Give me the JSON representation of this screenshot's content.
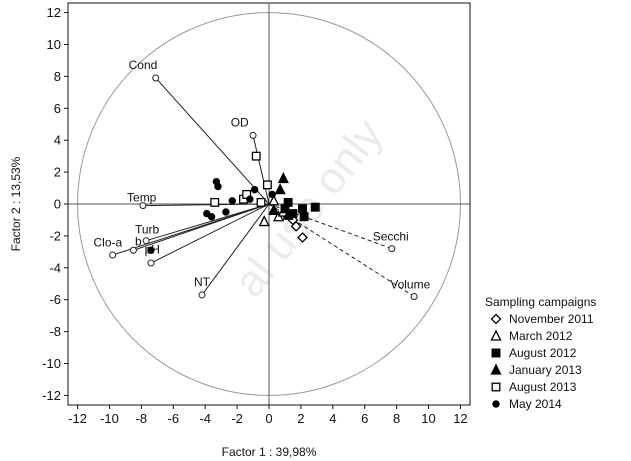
{
  "chart_data": {
    "type": "scatter",
    "subtype": "pca-biplot",
    "xlabel": "Factor 1 : 39,98%",
    "ylabel": "Factor 2 : 13,53%",
    "xlim": [
      -12.6,
      12.6
    ],
    "ylim": [
      -12.6,
      12.6
    ],
    "xticks": [
      -12,
      -10,
      -8,
      -6,
      -4,
      -2,
      0,
      2,
      4,
      6,
      8,
      10,
      12
    ],
    "yticks": [
      -12,
      -10,
      -8,
      -6,
      -4,
      -2,
      0,
      2,
      4,
      6,
      8,
      10,
      12
    ],
    "circle_radius": 12,
    "grid": false,
    "watermark": "al use only",
    "variables": [
      {
        "name": "Cond",
        "x": -7.1,
        "y": 7.9,
        "label_dx": -1.7,
        "label_dy": 0.55,
        "dashed": false
      },
      {
        "name": "OD",
        "x": -1.0,
        "y": 4.3,
        "label_dx": -1.4,
        "label_dy": 0.55,
        "dashed": false
      },
      {
        "name": "Temp",
        "x": -7.9,
        "y": -0.1,
        "label_dx": -1.0,
        "label_dy": 0.25,
        "dashed": false
      },
      {
        "name": "Turb",
        "x": -7.7,
        "y": -2.3,
        "label_dx": -0.7,
        "label_dy": 0.45,
        "dashed": false
      },
      {
        "name": "Clo-a",
        "x": -9.8,
        "y": -3.2,
        "label_dx": -1.2,
        "label_dy": 0.55,
        "dashed": false
      },
      {
        "name": "b",
        "x": -8.5,
        "y": -2.9,
        "label_dx": 0.1,
        "label_dy": 0.3,
        "dashed": false
      },
      {
        "name": "pH",
        "x": -7.4,
        "y": -3.7,
        "label_dx": -0.4,
        "label_dy": 0.6,
        "dashed": false
      },
      {
        "name": "NT",
        "x": -4.2,
        "y": -5.7,
        "label_dx": -0.5,
        "label_dy": 0.55,
        "dashed": false
      },
      {
        "name": "Secchi",
        "x": 7.7,
        "y": -2.8,
        "label_dx": -1.2,
        "label_dy": 0.5,
        "dashed": true
      },
      {
        "name": "Volume",
        "x": 9.1,
        "y": -5.8,
        "label_dx": -1.5,
        "label_dy": 0.5,
        "dashed": true
      }
    ],
    "legend": {
      "title": "Sampling campaigns",
      "placement": "right"
    },
    "series": [
      {
        "name": "November 2011",
        "marker": "diamond-open",
        "points": [
          [
            1.5,
            -1.0
          ],
          [
            1.7,
            -1.4
          ],
          [
            2.1,
            -2.1
          ],
          [
            1.0,
            -0.6
          ]
        ]
      },
      {
        "name": "March 2012",
        "marker": "triangle-open",
        "points": [
          [
            -0.3,
            -1.1
          ],
          [
            0.6,
            -0.8
          ],
          [
            0.9,
            -0.5
          ],
          [
            0.3,
            0.2
          ]
        ]
      },
      {
        "name": "August 2012",
        "marker": "square-filled",
        "points": [
          [
            1.0,
            -0.3
          ],
          [
            1.5,
            -0.6
          ],
          [
            2.1,
            -0.3
          ],
          [
            2.2,
            -0.8
          ],
          [
            2.9,
            -0.2
          ],
          [
            1.2,
            0.1
          ]
        ]
      },
      {
        "name": "January 2013",
        "marker": "triangle-filled",
        "points": [
          [
            0.9,
            1.6
          ],
          [
            0.7,
            0.9
          ],
          [
            1.2,
            -0.7
          ],
          [
            0.3,
            -0.4
          ]
        ]
      },
      {
        "name": "August 2013",
        "marker": "square-open",
        "points": [
          [
            -0.8,
            3.0
          ],
          [
            -0.1,
            1.2
          ],
          [
            -1.6,
            0.3
          ],
          [
            -3.4,
            0.1
          ],
          [
            -0.5,
            0.1
          ],
          [
            -1.4,
            0.6
          ]
        ]
      },
      {
        "name": "May 2014",
        "marker": "circle-filled",
        "points": [
          [
            -3.3,
            1.4
          ],
          [
            -3.2,
            1.1
          ],
          [
            -3.9,
            -0.6
          ],
          [
            -3.6,
            -0.8
          ],
          [
            -2.7,
            -0.5
          ],
          [
            -1.2,
            0.3
          ],
          [
            -2.3,
            0.2
          ],
          [
            -7.4,
            -2.9
          ],
          [
            0.2,
            0.6
          ],
          [
            -0.9,
            0.9
          ]
        ]
      }
    ]
  }
}
